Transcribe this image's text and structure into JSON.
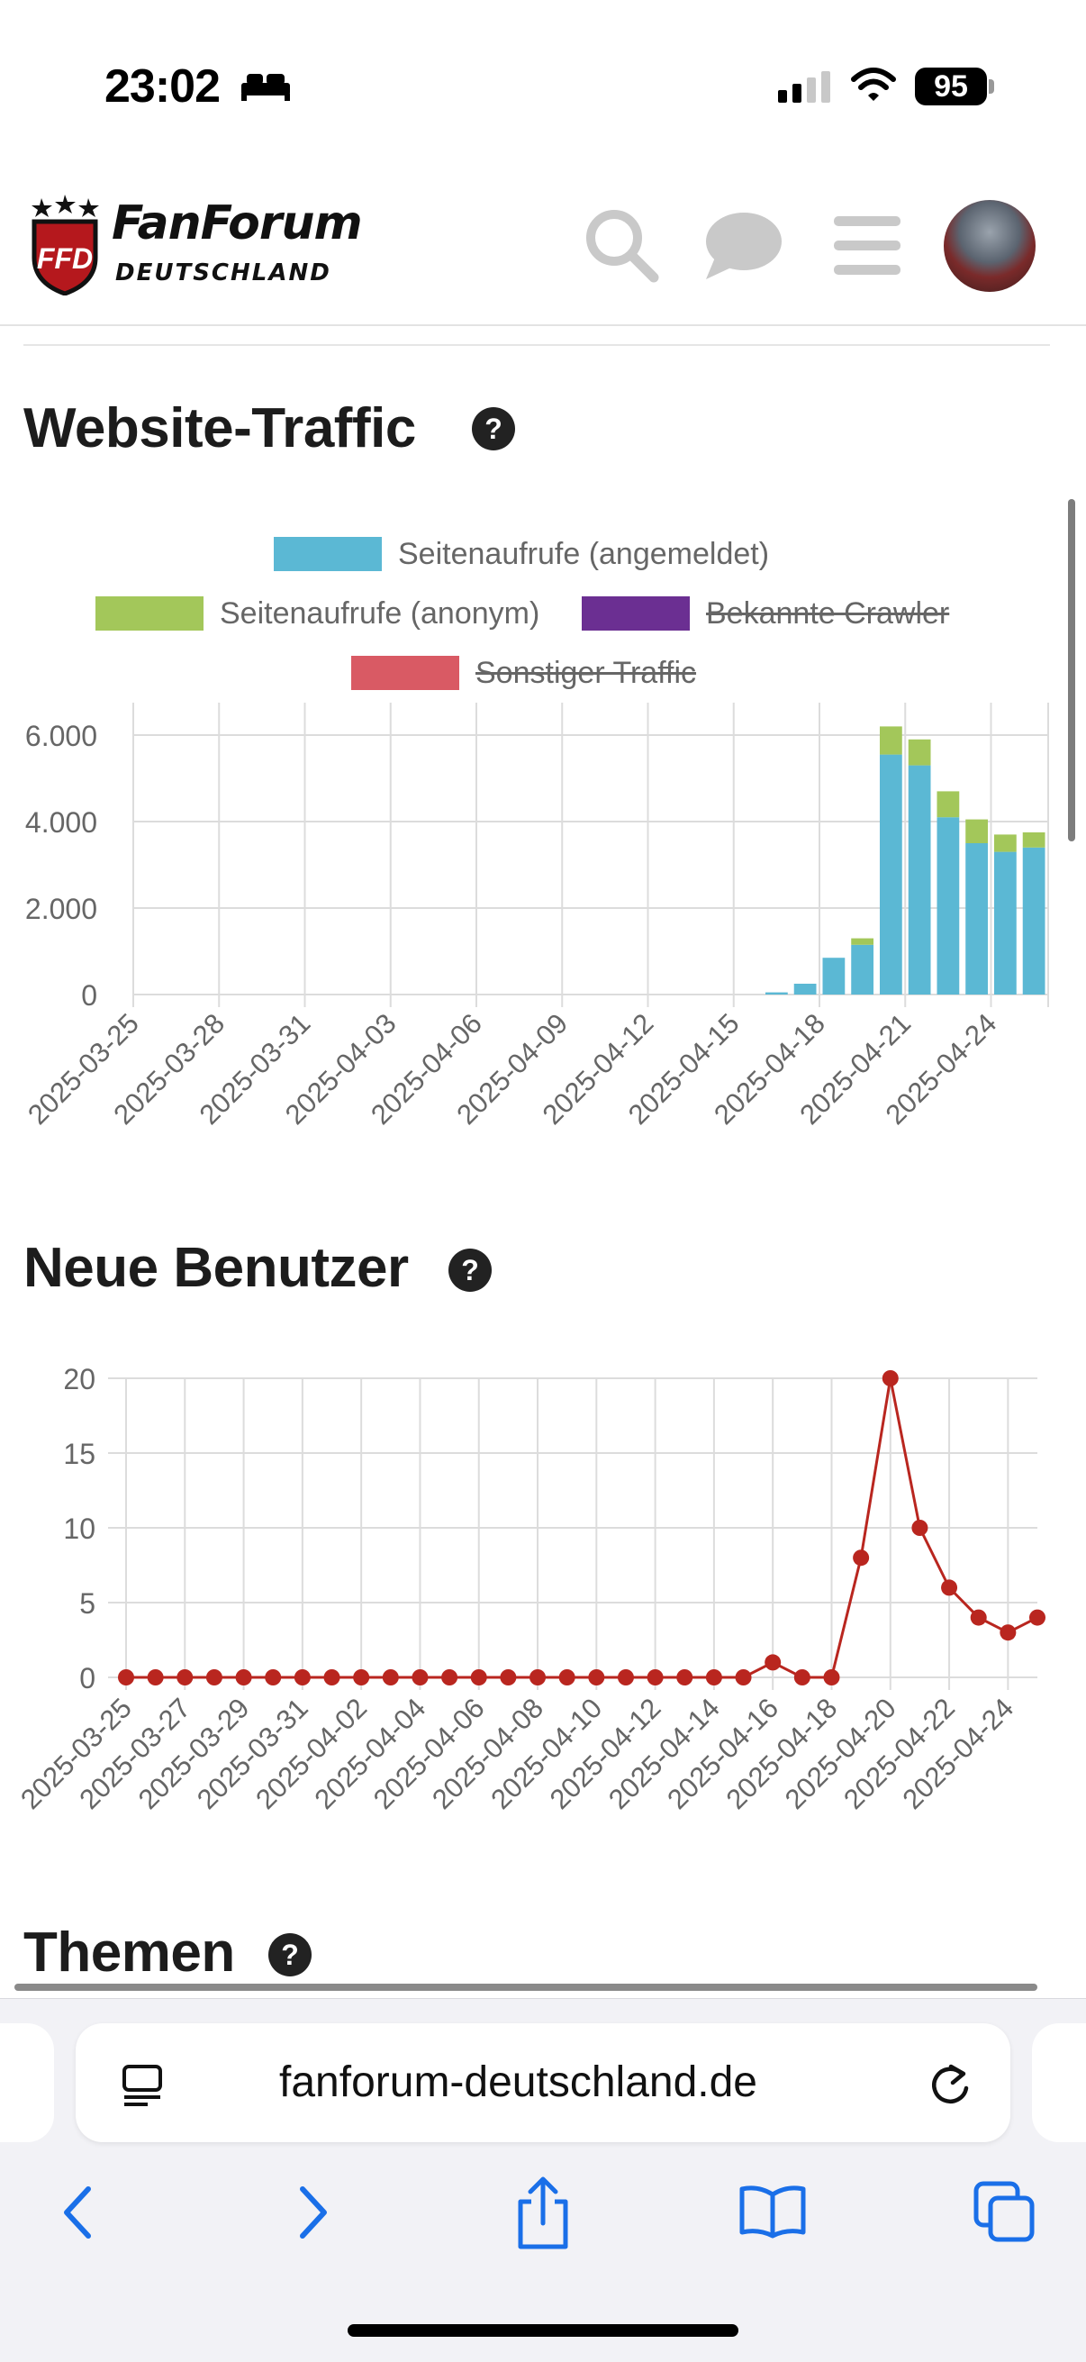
{
  "status_bar": {
    "time": "23:02",
    "battery": "95"
  },
  "header": {
    "logo_line1": "FanForum",
    "logo_line2": "DEUTSCHLAND",
    "logo_badge": "FFD"
  },
  "traffic": {
    "title": "Website-Traffic",
    "help": "?",
    "legend": [
      {
        "label": "Seitenaufrufe (angemeldet)",
        "color": "#5bb8d4",
        "hidden": false
      },
      {
        "label": "Seitenaufrufe (anonym)",
        "color": "#a3c75a",
        "hidden": false
      },
      {
        "label": "Bekannte Crawler",
        "color": "#6b2f92",
        "hidden": true
      },
      {
        "label": "Sonstiger Traffic",
        "color": "#d95a64",
        "hidden": true
      }
    ]
  },
  "users": {
    "title": "Neue Benutzer",
    "help": "?"
  },
  "themen": {
    "title": "Themen",
    "help": "?"
  },
  "browser": {
    "url": "fanforum-deutschland.de"
  },
  "chart_data": [
    {
      "type": "bar",
      "stacked": true,
      "title": "Website-Traffic",
      "categories": [
        "2025-03-25",
        "2025-03-26",
        "2025-03-27",
        "2025-03-28",
        "2025-03-29",
        "2025-03-30",
        "2025-03-31",
        "2025-04-01",
        "2025-04-02",
        "2025-04-03",
        "2025-04-04",
        "2025-04-05",
        "2025-04-06",
        "2025-04-07",
        "2025-04-08",
        "2025-04-09",
        "2025-04-10",
        "2025-04-11",
        "2025-04-12",
        "2025-04-13",
        "2025-04-14",
        "2025-04-15",
        "2025-04-16",
        "2025-04-17",
        "2025-04-18",
        "2025-04-19",
        "2025-04-20",
        "2025-04-21",
        "2025-04-22",
        "2025-04-23",
        "2025-04-24",
        "2025-04-25"
      ],
      "tick_labels": [
        "2025-03-25",
        "2025-03-28",
        "2025-03-31",
        "2025-04-03",
        "2025-04-06",
        "2025-04-09",
        "2025-04-12",
        "2025-04-15",
        "2025-04-18",
        "2025-04-21",
        "2025-04-24"
      ],
      "series": [
        {
          "name": "Seitenaufrufe (angemeldet)",
          "color": "#5bb8d4",
          "values": [
            0,
            0,
            0,
            0,
            0,
            0,
            0,
            0,
            0,
            0,
            0,
            0,
            0,
            0,
            0,
            0,
            0,
            0,
            0,
            0,
            0,
            0,
            50,
            250,
            850,
            1150,
            5550,
            5300,
            4100,
            3500,
            3300,
            3400
          ]
        },
        {
          "name": "Seitenaufrufe (anonym)",
          "color": "#a3c75a",
          "values": [
            0,
            0,
            0,
            0,
            0,
            0,
            0,
            0,
            0,
            0,
            0,
            0,
            0,
            0,
            0,
            0,
            0,
            0,
            0,
            0,
            0,
            0,
            0,
            0,
            0,
            150,
            650,
            600,
            600,
            550,
            400,
            350
          ]
        }
      ],
      "yticks": [
        "0",
        "2.000",
        "4.000",
        "6.000"
      ],
      "ylim": [
        0,
        6500
      ],
      "grid": true,
      "legend": "top"
    },
    {
      "type": "line",
      "title": "Neue Benutzer",
      "color": "#b9261f",
      "x": [
        "2025-03-25",
        "2025-03-26",
        "2025-03-27",
        "2025-03-28",
        "2025-03-29",
        "2025-03-30",
        "2025-03-31",
        "2025-04-01",
        "2025-04-02",
        "2025-04-03",
        "2025-04-04",
        "2025-04-05",
        "2025-04-06",
        "2025-04-07",
        "2025-04-08",
        "2025-04-09",
        "2025-04-10",
        "2025-04-11",
        "2025-04-12",
        "2025-04-13",
        "2025-04-14",
        "2025-04-15",
        "2025-04-16",
        "2025-04-17",
        "2025-04-18",
        "2025-04-19",
        "2025-04-20",
        "2025-04-21",
        "2025-04-22",
        "2025-04-23",
        "2025-04-24",
        "2025-04-25"
      ],
      "y": [
        0,
        0,
        0,
        0,
        0,
        0,
        0,
        0,
        0,
        0,
        0,
        0,
        0,
        0,
        0,
        0,
        0,
        0,
        0,
        0,
        0,
        0,
        1,
        0,
        0,
        8,
        20,
        10,
        6,
        4,
        3,
        4
      ],
      "tick_labels": [
        "2025-03-25",
        "2025-03-27",
        "2025-03-29",
        "2025-03-31",
        "2025-04-02",
        "2025-04-04",
        "2025-04-06",
        "2025-04-08",
        "2025-04-10",
        "2025-04-12",
        "2025-04-14",
        "2025-04-16",
        "2025-04-18",
        "2025-04-20",
        "2025-04-22",
        "2025-04-24"
      ],
      "yticks": [
        "0",
        "5",
        "10",
        "15",
        "20"
      ],
      "ylim": [
        0,
        20
      ],
      "grid": true
    }
  ]
}
